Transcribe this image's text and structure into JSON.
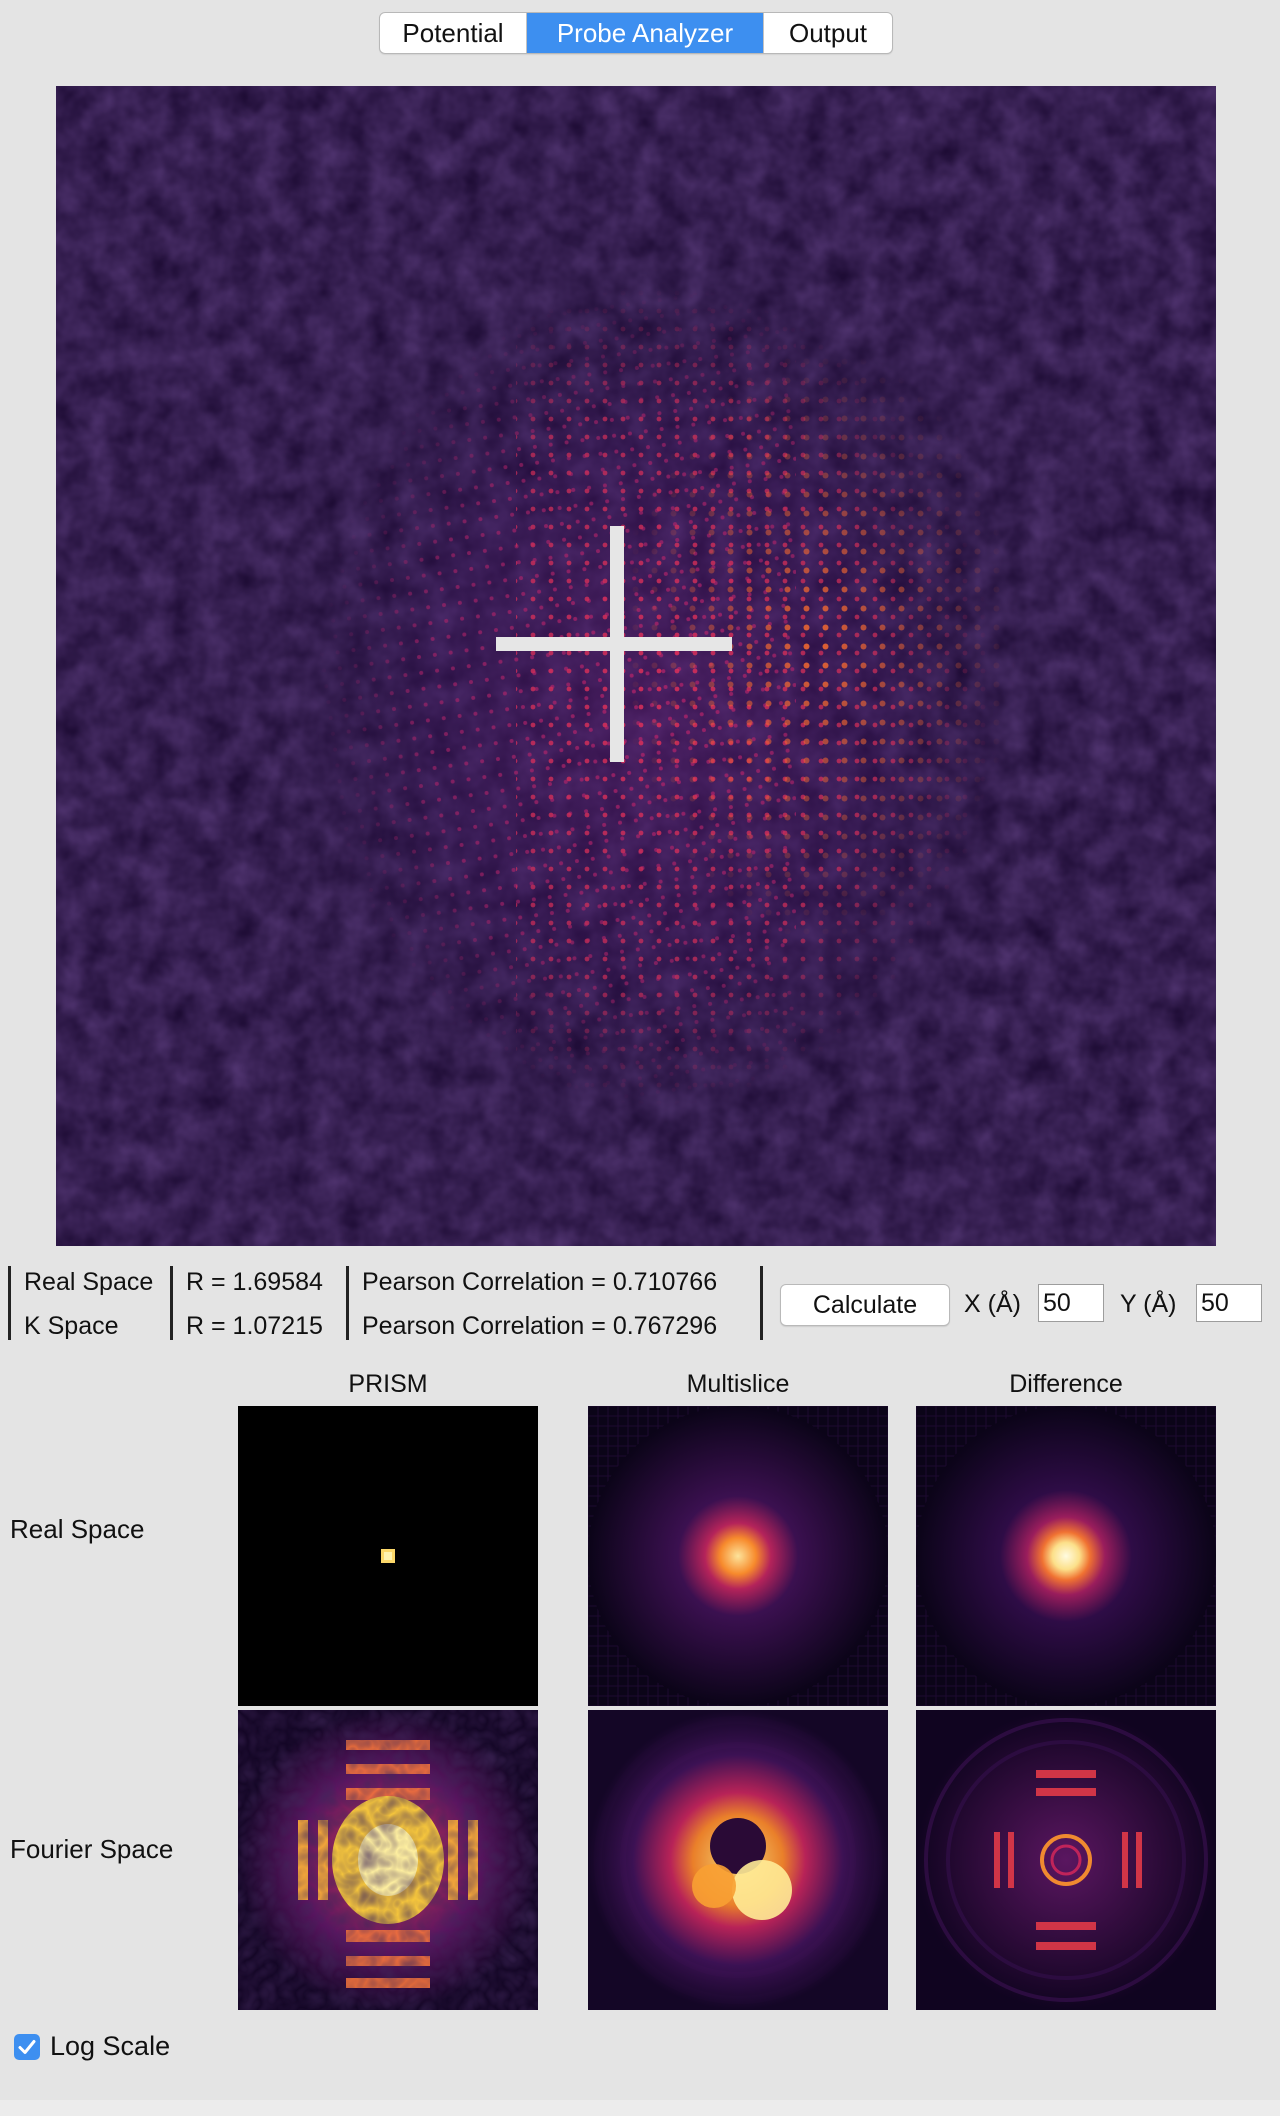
{
  "tabs": [
    {
      "label": "Potential",
      "active": false
    },
    {
      "label": "Probe Analyzer",
      "active": true
    },
    {
      "label": "Output",
      "active": false
    }
  ],
  "stats": {
    "real_space_label": "Real Space",
    "k_space_label": "K Space",
    "real_r": "R = 1.69584",
    "k_r": "R = 1.07215",
    "real_pearson": "Pearson Correlation = 0.710766",
    "k_pearson": "Pearson Correlation = 0.767296"
  },
  "controls": {
    "calculate_label": "Calculate",
    "x_label": "X (Å)",
    "x_value": "50",
    "y_label": "Y (Å)",
    "y_value": "50"
  },
  "grid": {
    "columns": [
      "PRISM",
      "Multislice",
      "Difference"
    ],
    "rows": [
      "Real Space",
      "Fourier Space"
    ]
  },
  "log_scale": {
    "label": "Log Scale",
    "checked": true
  },
  "colors": {
    "accent": "#3d8ff0",
    "colormap_dark": "#1e0c35",
    "colormap_mid": "#c4245a",
    "colormap_bright": "#fcd06a"
  }
}
